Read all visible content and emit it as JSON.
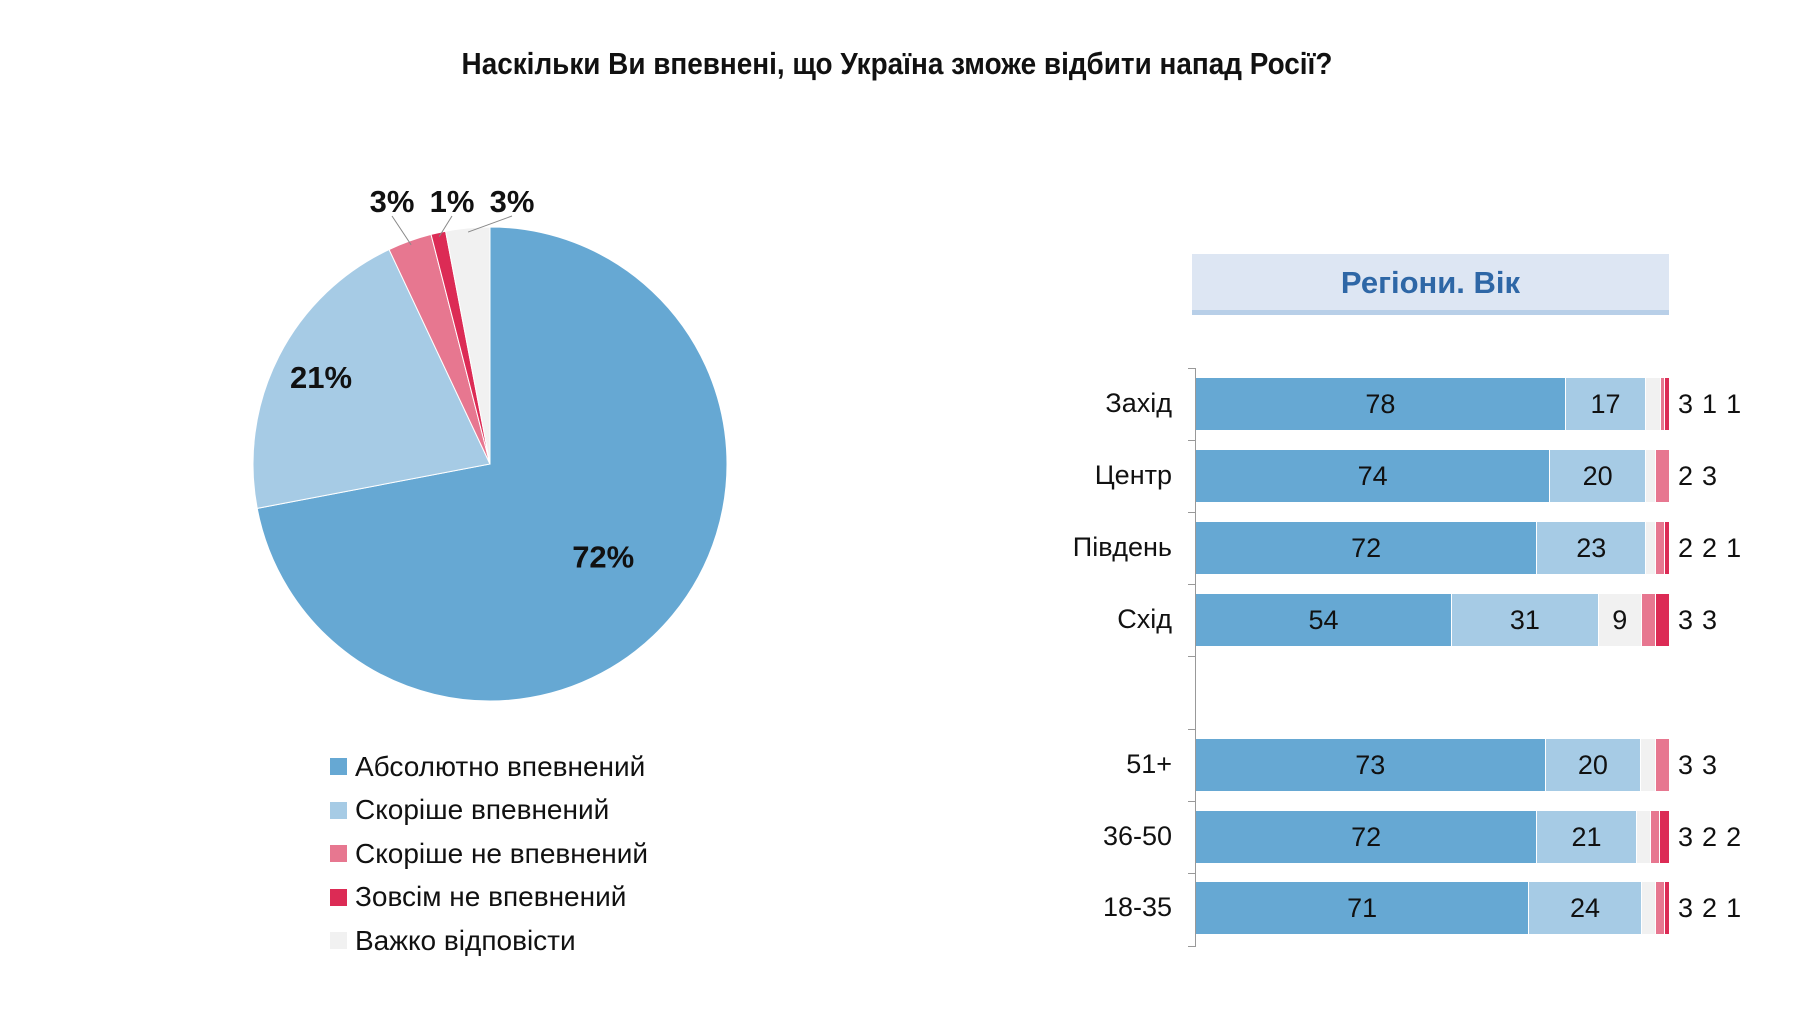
{
  "chart_data": [
    {
      "type": "pie",
      "title": "Наскільки Ви впевнені, що Україна зможе відбити напад Росії?",
      "slices": [
        {
          "label": "Абсолютно впевнений",
          "value": 72,
          "text": "72%",
          "color": "#66a8d3"
        },
        {
          "label": "Скоріше впевнений",
          "value": 21,
          "text": "21%",
          "color": "#a6cbe5"
        },
        {
          "label": "Скоріше не впевнений",
          "value": 3,
          "text": "3%",
          "color": "#e77790"
        },
        {
          "label": "Зовсім не впевнений",
          "value": 1,
          "text": "1%",
          "color": "#dc2b55"
        },
        {
          "label": "Важко відповісти",
          "value": 3,
          "text": "3%",
          "color": "#f1f1f1"
        }
      ],
      "legend": "bottom"
    },
    {
      "type": "bar",
      "stacked": true,
      "orientation": "horizontal",
      "title": "Регіони. Вік",
      "series_order": [
        "Абсолютно впевнений",
        "Скоріше впевнений",
        "Важко відповісти",
        "Скоріше не впевнений",
        "Зовсім не впевнений"
      ],
      "colors": [
        "#66a8d3",
        "#a6cbe5",
        "#f1f1f1",
        "#e77790",
        "#dc2b55"
      ],
      "categories": [
        "Захід",
        "Центр",
        "Південь",
        "Схід",
        "51+",
        "36-50",
        "18-35"
      ],
      "values": [
        [
          78,
          17,
          3,
          1,
          1
        ],
        [
          74,
          20,
          2,
          3,
          0
        ],
        [
          72,
          23,
          2,
          2,
          1
        ],
        [
          54,
          31,
          9,
          3,
          3
        ],
        [
          73,
          20,
          3,
          3,
          0
        ],
        [
          72,
          21,
          3,
          2,
          2
        ],
        [
          71,
          24,
          3,
          2,
          1
        ]
      ]
    }
  ]
}
